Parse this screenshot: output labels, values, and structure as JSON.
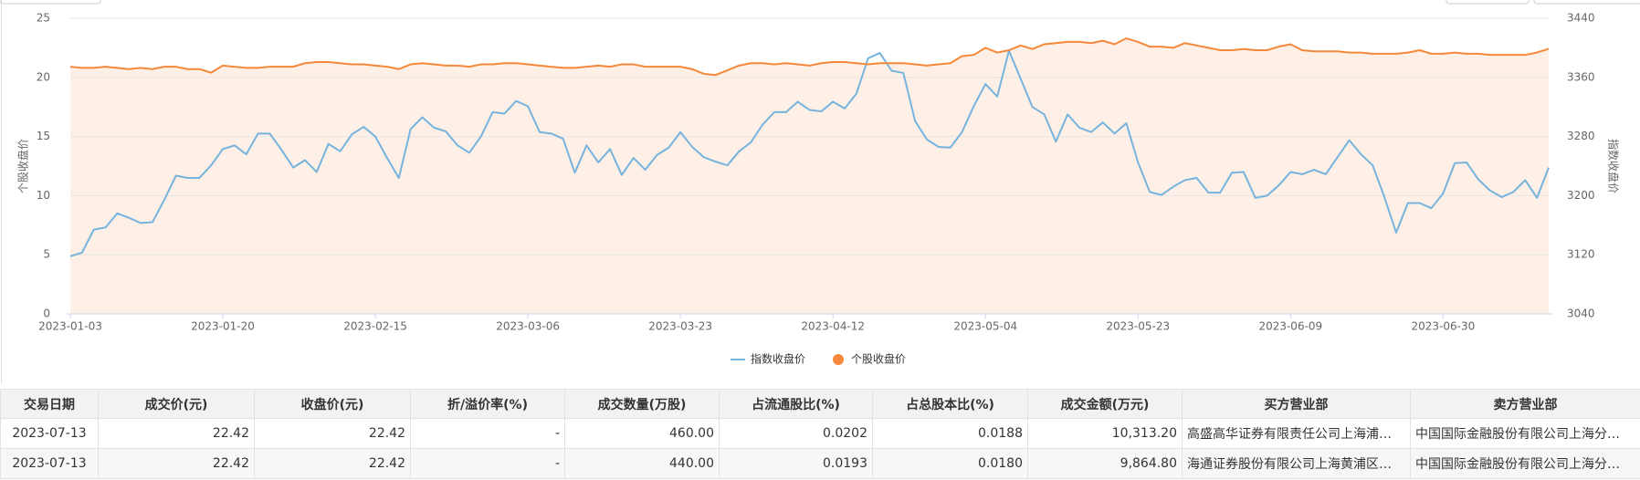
{
  "chart_data": {
    "type": "line",
    "categories": [
      "2023-01-03",
      null,
      null,
      null,
      null,
      null,
      null,
      null,
      null,
      null,
      null,
      null,
      null,
      "2023-01-20",
      null,
      null,
      null,
      null,
      null,
      null,
      null,
      null,
      null,
      null,
      null,
      null,
      "2023-02-15",
      null,
      null,
      null,
      null,
      null,
      null,
      null,
      null,
      null,
      null,
      null,
      null,
      "2023-03-06",
      null,
      null,
      null,
      null,
      null,
      null,
      null,
      null,
      null,
      null,
      null,
      null,
      "2023-03-23",
      null,
      null,
      null,
      null,
      null,
      null,
      null,
      null,
      null,
      null,
      null,
      null,
      "2023-04-12",
      null,
      null,
      null,
      null,
      null,
      null,
      null,
      null,
      null,
      null,
      null,
      null,
      "2023-05-04",
      null,
      null,
      null,
      null,
      null,
      null,
      null,
      null,
      null,
      null,
      null,
      null,
      "2023-05-23",
      null,
      null,
      null,
      null,
      null,
      null,
      null,
      null,
      null,
      null,
      null,
      null,
      "2023-06-09",
      null,
      null,
      null,
      null,
      null,
      null,
      null,
      null,
      null,
      null,
      null,
      null,
      "2023-06-30",
      null,
      null,
      null,
      null,
      null,
      null,
      null,
      null,
      null
    ],
    "series": [
      {
        "name": "指数收盘价",
        "color": "#76b3dd",
        "axis": "y2",
        "area": false,
        "marker": "line",
        "values": [
          3118,
          3123,
          3154,
          3157,
          3176,
          3170,
          3163,
          3164,
          3194,
          3227,
          3224,
          3224,
          3241,
          3263,
          3268,
          3256,
          3284,
          3284,
          3262,
          3238,
          3248,
          3232,
          3270,
          3260,
          3283,
          3293,
          3280,
          3251,
          3224,
          3290,
          3306,
          3292,
          3287,
          3268,
          3258,
          3280,
          3313,
          3311,
          3328,
          3321,
          3286,
          3284,
          3277,
          3231,
          3268,
          3245,
          3263,
          3228,
          3251,
          3235,
          3255,
          3265,
          3286,
          3266,
          3252,
          3246,
          3241,
          3260,
          3272,
          3296,
          3313,
          3313,
          3327,
          3316,
          3314,
          3327,
          3318,
          3338,
          3386,
          3393,
          3369,
          3366,
          3301,
          3276,
          3266,
          3265,
          3286,
          3321,
          3351,
          3334,
          3396,
          3358,
          3320,
          3310,
          3273,
          3310,
          3292,
          3286,
          3299,
          3284,
          3298,
          3245,
          3205,
          3201,
          3212,
          3221,
          3224,
          3204,
          3204,
          3231,
          3232,
          3197,
          3200,
          3214,
          3232,
          3229,
          3235,
          3229,
          3252,
          3275,
          3256,
          3241,
          3198,
          3150,
          3190,
          3190,
          3183,
          3203,
          3244,
          3245,
          3222,
          3207,
          3198,
          3205,
          3221,
          3197,
          3238
        ]
      },
      {
        "name": "个股收盘价",
        "color": "#f5883a",
        "axis": "y",
        "area": true,
        "marker": "circle",
        "values": [
          20.9,
          20.8,
          20.8,
          20.9,
          20.8,
          20.7,
          20.8,
          20.7,
          20.9,
          20.9,
          20.7,
          20.7,
          20.4,
          21.0,
          20.9,
          20.8,
          20.8,
          20.9,
          20.9,
          20.9,
          21.2,
          21.3,
          21.3,
          21.2,
          21.1,
          21.1,
          21.0,
          20.9,
          20.7,
          21.1,
          21.2,
          21.1,
          21.0,
          21.0,
          20.9,
          21.1,
          21.1,
          21.2,
          21.2,
          21.1,
          21.0,
          20.9,
          20.8,
          20.8,
          20.9,
          21.0,
          20.9,
          21.1,
          21.1,
          20.9,
          20.9,
          20.9,
          20.9,
          20.7,
          20.3,
          20.2,
          20.6,
          21.0,
          21.2,
          21.2,
          21.1,
          21.2,
          21.1,
          21.0,
          21.2,
          21.3,
          21.3,
          21.2,
          21.1,
          21.2,
          21.2,
          21.2,
          21.1,
          21.0,
          21.1,
          21.2,
          21.8,
          21.9,
          22.5,
          22.1,
          22.3,
          22.7,
          22.4,
          22.8,
          22.9,
          23.0,
          23.0,
          22.9,
          23.1,
          22.8,
          23.3,
          23.0,
          22.6,
          22.6,
          22.5,
          22.9,
          22.7,
          22.5,
          22.3,
          22.3,
          22.4,
          22.3,
          22.3,
          22.6,
          22.8,
          22.3,
          22.2,
          22.2,
          22.2,
          22.1,
          22.1,
          22.0,
          22.0,
          22.0,
          22.1,
          22.3,
          22.0,
          22.0,
          22.1,
          22.0,
          22.0,
          21.9,
          21.9,
          21.9,
          21.9,
          22.1,
          22.42
        ]
      }
    ],
    "ylabel": "个股收盘价",
    "y2label": "指数收盘价",
    "ylim": [
      0,
      25
    ],
    "yticks": [
      0,
      5,
      10,
      15,
      20,
      25
    ],
    "y2lim": [
      3040,
      3440
    ],
    "y2ticks": [
      3040,
      3120,
      3200,
      3280,
      3360,
      3440
    ],
    "grid": true,
    "legend": "bottom"
  },
  "table": {
    "header": [
      "交易日期",
      "成交价(元)",
      "收盘价(元)",
      "折/溢价率(%)",
      "成交数量(万股)",
      "占流通股比(%)",
      "占总股本比(%)",
      "成交金额(万元)",
      "买方营业部",
      "卖方营业部"
    ],
    "rows": [
      [
        "2023-07-13",
        "22.42",
        "22.42",
        "-",
        "460.00",
        "0.0202",
        "0.0188",
        "10,313.20",
        "高盛高华证券有限责任公司上海浦…",
        "中国国际金融股份有限公司上海分…"
      ],
      [
        "2023-07-13",
        "22.42",
        "22.42",
        "-",
        "440.00",
        "0.0193",
        "0.0180",
        "9,864.80",
        "海通证券股份有限公司上海黄浦区…",
        "中国国际金融股份有限公司上海分…"
      ]
    ]
  }
}
